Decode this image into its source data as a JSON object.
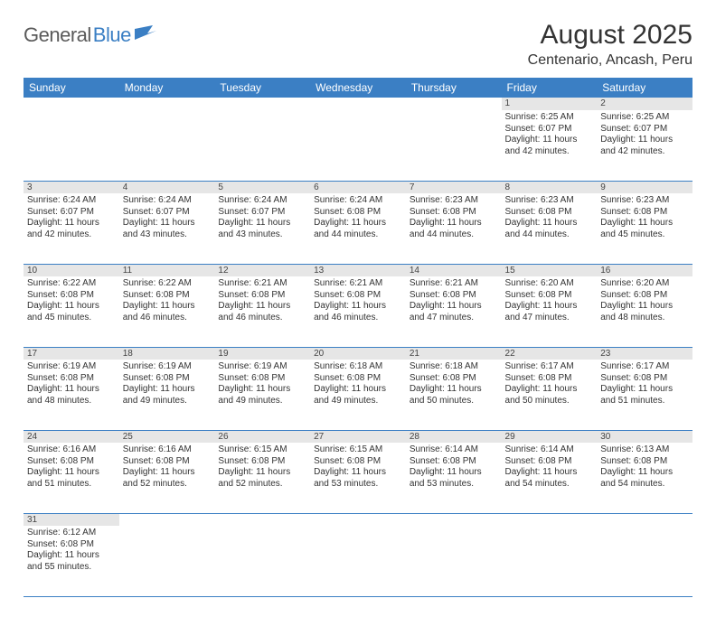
{
  "logo": {
    "part1": "General",
    "part2": "Blue"
  },
  "title": "August 2025",
  "location": "Centenario, Ancash, Peru",
  "dayHeaders": [
    "Sunday",
    "Monday",
    "Tuesday",
    "Wednesday",
    "Thursday",
    "Friday",
    "Saturday"
  ],
  "colors": {
    "headerBg": "#3b7fc4",
    "dayNumBg": "#e6e6e6",
    "text": "#333333",
    "logoGray": "#5a5a5a",
    "logoBlue": "#3b7fc4"
  },
  "weeks": [
    [
      null,
      null,
      null,
      null,
      null,
      {
        "d": "1",
        "sr": "6:25 AM",
        "ss": "6:07 PM",
        "dl": "11 hours and 42 minutes."
      },
      {
        "d": "2",
        "sr": "6:25 AM",
        "ss": "6:07 PM",
        "dl": "11 hours and 42 minutes."
      }
    ],
    [
      {
        "d": "3",
        "sr": "6:24 AM",
        "ss": "6:07 PM",
        "dl": "11 hours and 42 minutes."
      },
      {
        "d": "4",
        "sr": "6:24 AM",
        "ss": "6:07 PM",
        "dl": "11 hours and 43 minutes."
      },
      {
        "d": "5",
        "sr": "6:24 AM",
        "ss": "6:07 PM",
        "dl": "11 hours and 43 minutes."
      },
      {
        "d": "6",
        "sr": "6:24 AM",
        "ss": "6:08 PM",
        "dl": "11 hours and 44 minutes."
      },
      {
        "d": "7",
        "sr": "6:23 AM",
        "ss": "6:08 PM",
        "dl": "11 hours and 44 minutes."
      },
      {
        "d": "8",
        "sr": "6:23 AM",
        "ss": "6:08 PM",
        "dl": "11 hours and 44 minutes."
      },
      {
        "d": "9",
        "sr": "6:23 AM",
        "ss": "6:08 PM",
        "dl": "11 hours and 45 minutes."
      }
    ],
    [
      {
        "d": "10",
        "sr": "6:22 AM",
        "ss": "6:08 PM",
        "dl": "11 hours and 45 minutes."
      },
      {
        "d": "11",
        "sr": "6:22 AM",
        "ss": "6:08 PM",
        "dl": "11 hours and 46 minutes."
      },
      {
        "d": "12",
        "sr": "6:21 AM",
        "ss": "6:08 PM",
        "dl": "11 hours and 46 minutes."
      },
      {
        "d": "13",
        "sr": "6:21 AM",
        "ss": "6:08 PM",
        "dl": "11 hours and 46 minutes."
      },
      {
        "d": "14",
        "sr": "6:21 AM",
        "ss": "6:08 PM",
        "dl": "11 hours and 47 minutes."
      },
      {
        "d": "15",
        "sr": "6:20 AM",
        "ss": "6:08 PM",
        "dl": "11 hours and 47 minutes."
      },
      {
        "d": "16",
        "sr": "6:20 AM",
        "ss": "6:08 PM",
        "dl": "11 hours and 48 minutes."
      }
    ],
    [
      {
        "d": "17",
        "sr": "6:19 AM",
        "ss": "6:08 PM",
        "dl": "11 hours and 48 minutes."
      },
      {
        "d": "18",
        "sr": "6:19 AM",
        "ss": "6:08 PM",
        "dl": "11 hours and 49 minutes."
      },
      {
        "d": "19",
        "sr": "6:19 AM",
        "ss": "6:08 PM",
        "dl": "11 hours and 49 minutes."
      },
      {
        "d": "20",
        "sr": "6:18 AM",
        "ss": "6:08 PM",
        "dl": "11 hours and 49 minutes."
      },
      {
        "d": "21",
        "sr": "6:18 AM",
        "ss": "6:08 PM",
        "dl": "11 hours and 50 minutes."
      },
      {
        "d": "22",
        "sr": "6:17 AM",
        "ss": "6:08 PM",
        "dl": "11 hours and 50 minutes."
      },
      {
        "d": "23",
        "sr": "6:17 AM",
        "ss": "6:08 PM",
        "dl": "11 hours and 51 minutes."
      }
    ],
    [
      {
        "d": "24",
        "sr": "6:16 AM",
        "ss": "6:08 PM",
        "dl": "11 hours and 51 minutes."
      },
      {
        "d": "25",
        "sr": "6:16 AM",
        "ss": "6:08 PM",
        "dl": "11 hours and 52 minutes."
      },
      {
        "d": "26",
        "sr": "6:15 AM",
        "ss": "6:08 PM",
        "dl": "11 hours and 52 minutes."
      },
      {
        "d": "27",
        "sr": "6:15 AM",
        "ss": "6:08 PM",
        "dl": "11 hours and 53 minutes."
      },
      {
        "d": "28",
        "sr": "6:14 AM",
        "ss": "6:08 PM",
        "dl": "11 hours and 53 minutes."
      },
      {
        "d": "29",
        "sr": "6:14 AM",
        "ss": "6:08 PM",
        "dl": "11 hours and 54 minutes."
      },
      {
        "d": "30",
        "sr": "6:13 AM",
        "ss": "6:08 PM",
        "dl": "11 hours and 54 minutes."
      }
    ],
    [
      {
        "d": "31",
        "sr": "6:12 AM",
        "ss": "6:08 PM",
        "dl": "11 hours and 55 minutes."
      },
      null,
      null,
      null,
      null,
      null,
      null
    ]
  ],
  "labels": {
    "sunrise": "Sunrise:",
    "sunset": "Sunset:",
    "daylight": "Daylight:"
  }
}
